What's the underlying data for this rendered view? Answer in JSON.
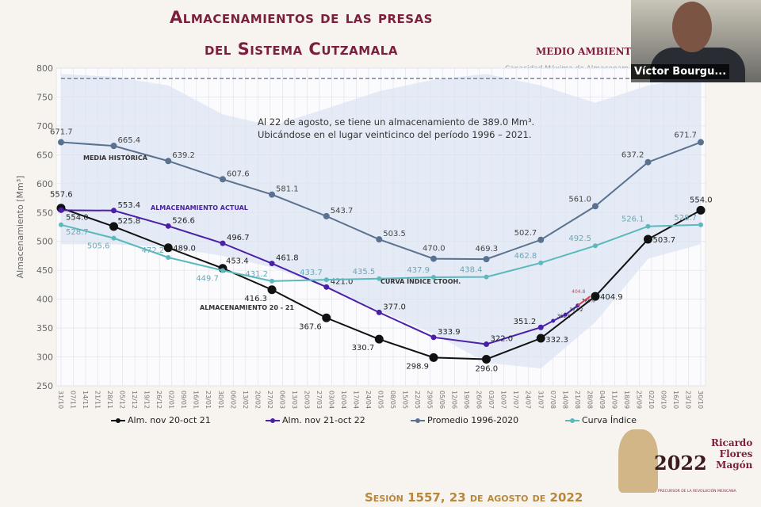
{
  "header": {
    "title_line1": "Almacenamientos de las presas",
    "title_line2": "del Sistema Cutzamala",
    "logo_text": "MEDIO AMBIENTE",
    "capacity_label": "Capacidad Máxima de Almacenamie"
  },
  "webcam": {
    "participant_name": "Víctor Bourgu..."
  },
  "footer": {
    "session": "Sesión 1557, 23 de agosto de 2022"
  },
  "emblem": {
    "year": "2022",
    "name_line1": "Ricardo",
    "name_line2": "Flores",
    "name_line3": "Magón",
    "subtitle": "PRECURSOR DE LA REVOLUCIÓN MEXICANA"
  },
  "colors": {
    "black_series": "#111111",
    "purple_series": "#4b1fa8",
    "gray_blue_series": "#5a7190",
    "cyan_series": "#5bb8bd",
    "projection": "#d9434f",
    "band": "#dfe8f5",
    "title": "#7a1f3d"
  },
  "chart_data": {
    "type": "line",
    "ylabel": "Almacenamiento [Mm³]",
    "ylim": [
      250,
      800
    ],
    "yticks": [
      250,
      300,
      350,
      400,
      450,
      500,
      550,
      600,
      650,
      700,
      750,
      800
    ],
    "xticks": [
      "31/10",
      "07/11",
      "14/11",
      "21/11",
      "28/11",
      "05/12",
      "12/12",
      "19/12",
      "26/12",
      "02/01",
      "09/01",
      "16/01",
      "23/01",
      "30/01",
      "06/02",
      "13/02",
      "20/02",
      "27/02",
      "06/03",
      "13/03",
      "20/03",
      "27/03",
      "03/04",
      "10/04",
      "17/04",
      "24/04",
      "01/05",
      "08/05",
      "15/05",
      "22/05",
      "29/05",
      "05/06",
      "12/06",
      "19/06",
      "26/06",
      "03/07",
      "10/07",
      "17/07",
      "24/07",
      "31/07",
      "07/08",
      "14/08",
      "21/08",
      "28/08",
      "04/09",
      "11/09",
      "18/09",
      "25/09",
      "02/10",
      "09/10",
      "16/10",
      "23/10",
      "30/10"
    ],
    "grid": true,
    "legend_placement": "bottom",
    "capacity_max": 782,
    "annotation": [
      "Al 22 de agosto, se tiene un almacenamiento de 389.0 Mm³.",
      "Ubicándose en el lugar veinticinco del período 1996 – 2021."
    ],
    "band": {
      "x": [
        "31/10",
        "30/11",
        "31/12",
        "31/01",
        "28/02",
        "31/03",
        "30/04",
        "31/05",
        "30/06",
        "31/07",
        "31/08",
        "30/09",
        "30/10"
      ],
      "upper": [
        790,
        785,
        770,
        720,
        700,
        730,
        760,
        780,
        790,
        770,
        740,
        770,
        785
      ],
      "lower": [
        495,
        495,
        490,
        475,
        455,
        420,
        380,
        340,
        290,
        280,
        360,
        470,
        495
      ]
    },
    "series": [
      {
        "name": "Alm. nov 20-oct 21",
        "inline_label": "ALMACENAMIENTO 20 - 21",
        "color": "#111111",
        "x": [
          "31/10",
          "30/11",
          "31/12",
          "31/01",
          "28/02",
          "31/03",
          "30/04",
          "31/05",
          "30/06",
          "31/07",
          "31/08",
          "30/09",
          "30/10"
        ],
        "y": [
          557.6,
          525.8,
          489.0,
          453.4,
          416.3,
          367.6,
          330.7,
          298.9,
          296.0,
          332.3,
          404.9,
          503.7,
          554.0
        ]
      },
      {
        "name": "Alm. nov 21-oct 22",
        "inline_label": "ALMACENAMIENTO ACTUAL",
        "color": "#4b1fa8",
        "x": [
          "31/10",
          "30/11",
          "31/12",
          "31/01",
          "28/02",
          "31/03",
          "30/04",
          "31/05",
          "30/06",
          "31/07",
          "07/08",
          "14/08",
          "21/08"
        ],
        "y": [
          554.0,
          553.4,
          526.6,
          496.7,
          461.8,
          421.0,
          377.0,
          333.9,
          322.0,
          351.2,
          362.5,
          373.2,
          389.0
        ],
        "projection": {
          "x": [
            "21/08",
            "28/08"
          ],
          "y": [
            389.0,
            404.8
          ]
        }
      },
      {
        "name": "Promedio 1996-2020",
        "inline_label": "MEDIA HISTÓRICA",
        "color": "#5a7190",
        "x": [
          "31/10",
          "30/11",
          "31/12",
          "31/01",
          "28/02",
          "31/03",
          "30/04",
          "31/05",
          "30/06",
          "31/07",
          "31/08",
          "30/09",
          "30/10"
        ],
        "y": [
          671.7,
          665.4,
          639.2,
          607.6,
          581.1,
          543.7,
          503.5,
          470.0,
          469.3,
          502.7,
          561.0,
          637.2,
          671.7
        ]
      },
      {
        "name": "Curva Índice",
        "inline_label": "CURVA ÍNDICE CTOOH.",
        "color": "#5bb8bd",
        "x": [
          "31/10",
          "30/11",
          "31/12",
          "31/01",
          "28/02",
          "31/03",
          "30/04",
          "31/05",
          "30/06",
          "31/07",
          "31/08",
          "30/09",
          "30/10"
        ],
        "y": [
          528.7,
          505.6,
          472.2,
          449.7,
          431.2,
          433.7,
          435.5,
          437.9,
          438.4,
          462.8,
          492.5,
          526.1,
          528.7
        ]
      }
    ]
  }
}
